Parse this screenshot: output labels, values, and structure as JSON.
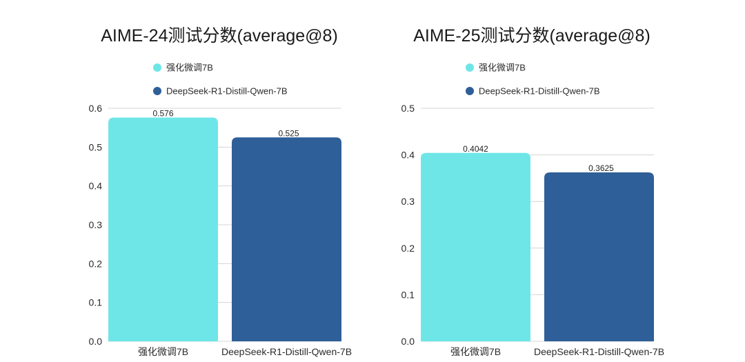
{
  "colors": {
    "series1": "#6ee6e8",
    "series2": "#2f5f98"
  },
  "chart_data": [
    {
      "type": "bar",
      "title": "AIME-24测试分数(average@8)",
      "categories": [
        "强化微调7B",
        "DeepSeek-R1-Distill-Qwen-7B"
      ],
      "values": [
        0.576,
        0.525
      ],
      "value_labels": [
        "0.576",
        "0.525"
      ],
      "legend": [
        "强化微调7B",
        "DeepSeek-R1-Distill-Qwen-7B"
      ],
      "ylim": [
        0,
        0.6
      ],
      "yticks": [
        0.0,
        0.1,
        0.2,
        0.3,
        0.4,
        0.5,
        0.6
      ],
      "ytick_labels": [
        "0.0",
        "0.1",
        "0.2",
        "0.3",
        "0.4",
        "0.5",
        "0.6"
      ],
      "xlabel": "",
      "ylabel": "",
      "grid": true,
      "legend_position": "top"
    },
    {
      "type": "bar",
      "title": "AIME-25测试分数(average@8)",
      "categories": [
        "强化微调7B",
        "DeepSeek-R1-Distill-Qwen-7B"
      ],
      "values": [
        0.4042,
        0.3625
      ],
      "value_labels": [
        "0.4042",
        "0.3625"
      ],
      "legend": [
        "强化微调7B",
        "DeepSeek-R1-Distill-Qwen-7B"
      ],
      "ylim": [
        0,
        0.5
      ],
      "yticks": [
        0.0,
        0.1,
        0.2,
        0.3,
        0.4,
        0.5
      ],
      "ytick_labels": [
        "0.0",
        "0.1",
        "0.2",
        "0.3",
        "0.4",
        "0.5"
      ],
      "xlabel": "",
      "ylabel": "",
      "grid": true,
      "legend_position": "top"
    }
  ]
}
